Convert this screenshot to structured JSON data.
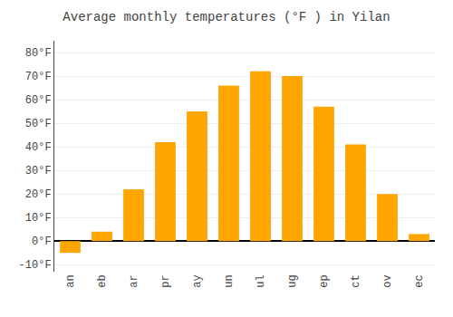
{
  "chart_data": {
    "type": "bar",
    "title": "Average monthly temperatures (°F ) in Yilan",
    "categories": [
      "an",
      "eb",
      "ar",
      "pr",
      "ay",
      "un",
      "ul",
      "ug",
      "ep",
      "ct",
      "ov",
      "ec"
    ],
    "values": [
      -5,
      4,
      22,
      42,
      55,
      66,
      72,
      70,
      57,
      41,
      20,
      3
    ],
    "color": "#FFA500",
    "ylim": [
      -13,
      85
    ],
    "yticks": [
      {
        "value": -10,
        "label": "-10°F"
      },
      {
        "value": 0,
        "label": "0°F"
      },
      {
        "value": 10,
        "label": "10°F"
      },
      {
        "value": 20,
        "label": "20°F"
      },
      {
        "value": 30,
        "label": "30°F"
      },
      {
        "value": 40,
        "label": "40°F"
      },
      {
        "value": 50,
        "label": "50°F"
      },
      {
        "value": 60,
        "label": "60°F"
      },
      {
        "value": 70,
        "label": "70°F"
      },
      {
        "value": 80,
        "label": "80°F"
      }
    ],
    "grid": true
  }
}
